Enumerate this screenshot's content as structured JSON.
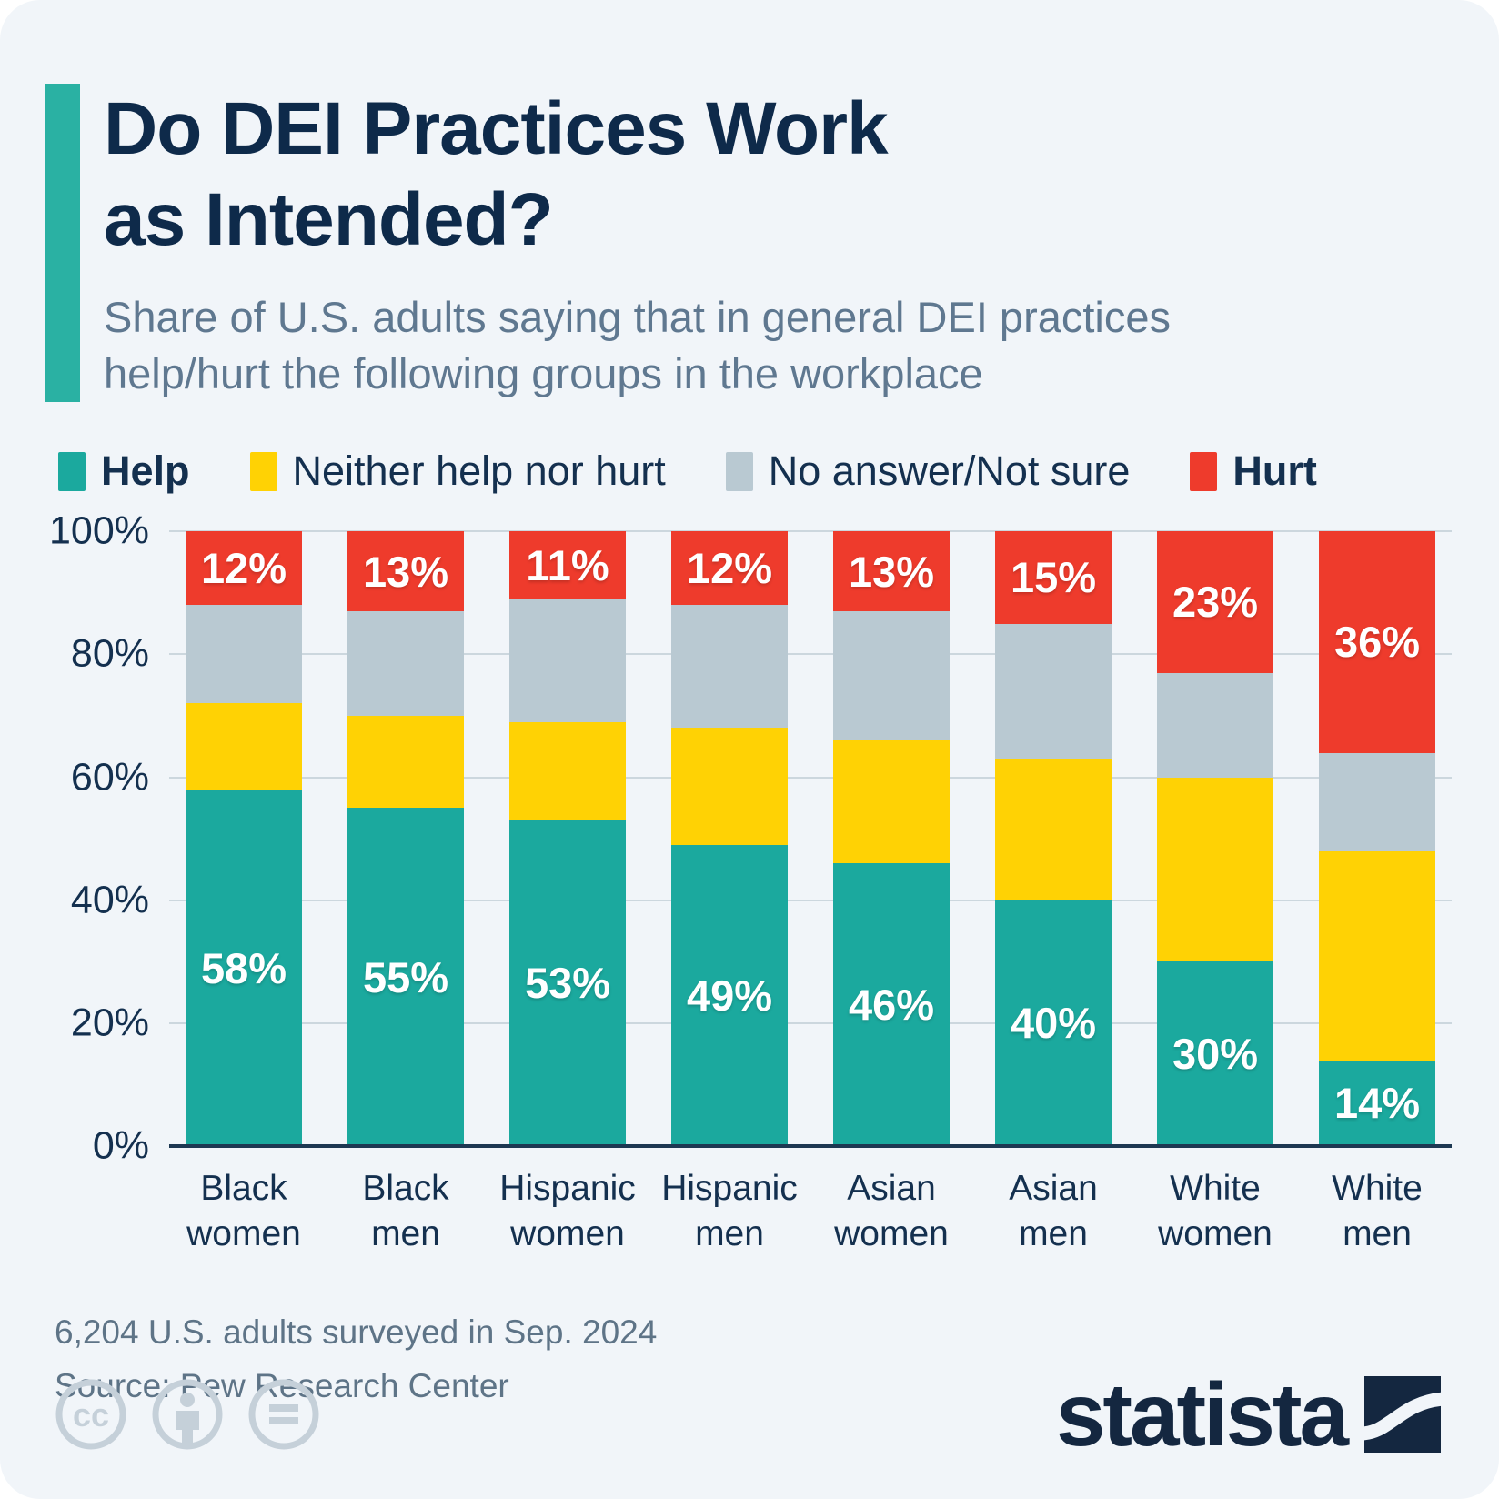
{
  "header": {
    "title_line1": "Do DEI Practices Work",
    "title_line2": "as Intended?",
    "subtitle": "Share of U.S. adults saying that in general DEI practices help/hurt the following groups in the workplace"
  },
  "chart_data": {
    "type": "stacked_bar",
    "unit": "%",
    "categories": [
      "Black\nwomen",
      "Black\nmen",
      "Hispanic\nwomen",
      "Hispanic\nmen",
      "Asian\nwomen",
      "Asian\nmen",
      "White\nwomen",
      "White\nmen"
    ],
    "series": [
      {
        "name": "Help",
        "color": "#1BA99E",
        "bold": true,
        "show_labels": true,
        "values": [
          58,
          55,
          53,
          49,
          46,
          40,
          30,
          14
        ]
      },
      {
        "name": "Neither help nor hurt",
        "color": "#FFD204",
        "bold": false,
        "show_labels": false,
        "values": [
          14,
          15,
          16,
          19,
          20,
          23,
          30,
          34
        ]
      },
      {
        "name": "No answer/Not sure",
        "color": "#B9C9D2",
        "bold": false,
        "show_labels": false,
        "values": [
          16,
          17,
          20,
          20,
          21,
          22,
          17,
          16
        ]
      },
      {
        "name": "Hurt",
        "color": "#EE3B2C",
        "bold": true,
        "show_labels": true,
        "values": [
          12,
          13,
          11,
          12,
          13,
          15,
          23,
          36
        ]
      }
    ],
    "y_ticks": [
      {
        "value": 100,
        "label": "100%"
      },
      {
        "value": 80,
        "label": "80%"
      },
      {
        "value": 60,
        "label": "60%"
      },
      {
        "value": 40,
        "label": "40%"
      },
      {
        "value": 20,
        "label": "20%"
      },
      {
        "value": 0,
        "label": "0%"
      }
    ],
    "ylim": [
      0,
      100
    ],
    "grid": true,
    "legend_position": "top"
  },
  "footer": {
    "note": "6,204 U.S. adults surveyed in Sep. 2024",
    "source": "Source: Pew Research Center",
    "brand": "statista"
  },
  "colors": {
    "background": "#F1F5F9",
    "accent": "#2AB1A3",
    "title": "#0E2A4A",
    "subtitle": "#5F7890",
    "axis_text": "#14304F",
    "baseline": "#1D3852",
    "gridline": "#CCD7DE",
    "label_text": "#FFFFFF",
    "footnote": "#5E7487",
    "brand_navy": "#142740",
    "cc_gray": "#C5D0D9"
  }
}
